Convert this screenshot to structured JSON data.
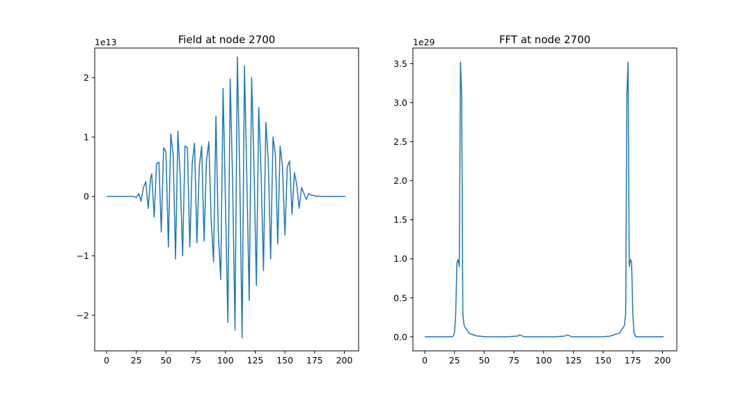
{
  "colors": {
    "series": "#1f77b4",
    "axes": "#000000",
    "background": "#ffffff"
  },
  "chart_data": [
    {
      "type": "line",
      "title": "Field at node 2700",
      "xlabel": "",
      "ylabel": "",
      "y_offset_label": "1e13",
      "xlim": [
        -10,
        212
      ],
      "ylim": [
        -2.6,
        2.5
      ],
      "x_ticks": [
        0,
        25,
        50,
        75,
        100,
        125,
        150,
        175,
        200
      ],
      "y_ticks": [
        -2,
        -1,
        0,
        1,
        2
      ],
      "y_tick_labels": [
        "−2",
        "−1",
        "0",
        "1",
        "2"
      ],
      "grid": false,
      "series": [
        {
          "x": [
            0,
            3,
            6,
            9,
            12,
            15,
            18,
            21,
            23,
            25,
            27,
            29,
            31,
            33,
            35,
            37,
            38,
            40,
            42,
            44,
            46,
            48,
            50,
            52,
            54,
            56,
            58,
            60,
            62,
            64,
            66,
            68,
            70,
            72,
            74,
            76,
            78,
            80,
            82,
            84,
            86,
            88,
            90,
            92,
            94,
            96,
            98,
            100,
            102,
            104,
            106,
            108,
            110,
            112,
            114,
            116,
            118,
            120,
            122,
            124,
            126,
            128,
            130,
            132,
            134,
            136,
            138,
            140,
            142,
            144,
            146,
            148,
            150,
            152,
            154,
            156,
            158,
            160,
            162,
            164,
            166,
            168,
            170,
            172,
            174,
            176,
            178,
            180,
            183,
            186,
            189,
            192,
            195,
            198,
            201
          ],
          "y": [
            0,
            0,
            0,
            0,
            0,
            0,
            0,
            0,
            0,
            -0.02,
            0.05,
            -0.08,
            0.15,
            0.25,
            -0.2,
            0.3,
            0.38,
            -0.35,
            0.55,
            0.58,
            -0.6,
            0.82,
            0.75,
            -0.85,
            1.05,
            0.7,
            -1.05,
            1.1,
            0.3,
            -1.0,
            0.85,
            0.82,
            -0.85,
            0.55,
            0.9,
            -0.78,
            0.5,
            0.85,
            -0.75,
            0.6,
            0.92,
            -0.4,
            -1.1,
            1.35,
            -0.6,
            -1.4,
            1.82,
            -0.1,
            -2.12,
            1.98,
            0.3,
            -2.25,
            2.35,
            0.4,
            -2.38,
            2.2,
            0.3,
            -1.75,
            2.0,
            0.5,
            -1.5,
            1.5,
            0.4,
            -1.25,
            1.25,
            0.6,
            -1.05,
            1.0,
            0.7,
            -0.8,
            0.85,
            0.5,
            -0.65,
            0.5,
            0.6,
            -0.3,
            0.4,
            0.2,
            -0.2,
            0.15,
            0.05,
            -0.05,
            0.05,
            0.02,
            0.02,
            0,
            0.01,
            0,
            0,
            0,
            0,
            0,
            0,
            0,
            0
          ]
        }
      ]
    },
    {
      "type": "line",
      "title": "FFT at node 2700",
      "xlabel": "",
      "ylabel": "",
      "y_offset_label": "1e29",
      "xlim": [
        -10,
        212
      ],
      "ylim": [
        -0.18,
        3.7
      ],
      "x_ticks": [
        0,
        25,
        50,
        75,
        100,
        125,
        150,
        175,
        200
      ],
      "y_ticks": [
        0.0,
        0.5,
        1.0,
        1.5,
        2.0,
        2.5,
        3.0,
        3.5
      ],
      "y_tick_labels": [
        "0.0",
        "0.5",
        "1.0",
        "1.5",
        "2.0",
        "2.5",
        "3.0",
        "3.5"
      ],
      "grid": false,
      "series": [
        {
          "x": [
            0,
            10,
            20,
            23,
            24,
            25,
            26,
            27,
            28,
            29,
            30,
            31,
            32,
            33,
            34,
            35,
            36,
            37,
            38,
            40,
            42,
            44,
            46,
            50,
            60,
            70,
            78,
            80,
            82,
            84,
            90,
            100,
            110,
            118,
            120,
            122,
            124,
            130,
            140,
            150,
            156,
            158,
            160,
            162,
            164,
            165,
            166,
            167,
            168,
            169,
            170,
            171,
            172,
            173,
            174,
            175,
            176,
            177,
            178,
            179,
            182,
            190,
            201
          ],
          "y": [
            0,
            0,
            0,
            0,
            0.01,
            0.06,
            0.3,
            0.95,
            0.99,
            0.9,
            3.52,
            3.1,
            0.3,
            0.15,
            0.12,
            0.1,
            0.08,
            0.05,
            0.04,
            0.03,
            0.02,
            0.01,
            0.01,
            0,
            0,
            0,
            0.01,
            0.025,
            0.01,
            0,
            0,
            0,
            0,
            0.01,
            0.025,
            0.01,
            0,
            0,
            0,
            0,
            0.01,
            0.02,
            0.03,
            0.04,
            0.05,
            0.08,
            0.1,
            0.12,
            0.15,
            0.3,
            3.1,
            3.52,
            0.9,
            0.99,
            0.95,
            0.3,
            0.06,
            0.01,
            0,
            0,
            0,
            0,
            0
          ]
        }
      ]
    }
  ]
}
